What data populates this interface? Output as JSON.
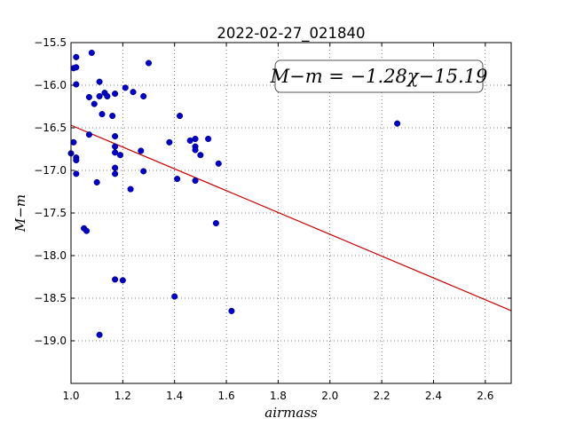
{
  "chart_data": {
    "type": "scatter",
    "title": "2022-02-27_021840",
    "xlabel": "airmass",
    "ylabel": "M−m",
    "xlim": [
      1.0,
      2.7
    ],
    "ylim": [
      -15.5,
      -19.5
    ],
    "y_inverted": true,
    "grid": true,
    "x_ticks": [
      1.0,
      1.2,
      1.4,
      1.6,
      1.8,
      2.0,
      2.2,
      2.4,
      2.6
    ],
    "x_tick_labels": [
      "1.0",
      "1.2",
      "1.4",
      "1.6",
      "1.8",
      "2.0",
      "2.2",
      "2.4",
      "2.6"
    ],
    "y_ticks": [
      -15.5,
      -16.0,
      -16.5,
      -17.0,
      -17.5,
      -18.0,
      -18.5,
      -19.0
    ],
    "y_tick_labels": [
      "−15.5",
      "−16.0",
      "−16.5",
      "−17.0",
      "−17.5",
      "−18.0",
      "−18.5",
      "−19.0"
    ],
    "annotation": "M−m = −1.28χ−15.19",
    "fit": {
      "slope": -1.28,
      "intercept": -15.19,
      "color": "#cc0000"
    },
    "marker_color": "#0000cc",
    "series": [
      {
        "x": [
          1.01,
          1.02,
          1.02,
          1.02,
          1.08,
          1.01,
          1.02,
          1.02,
          1.0,
          1.02,
          1.05,
          1.06,
          1.07,
          1.07,
          1.09,
          1.11,
          1.12,
          1.13,
          1.14,
          1.16,
          1.17,
          1.11,
          1.17,
          1.17,
          1.17,
          1.17,
          1.19,
          1.21,
          1.24,
          1.28,
          1.3,
          1.1,
          1.17,
          1.23,
          1.27,
          1.28,
          1.38,
          1.42,
          1.41,
          1.46,
          1.48,
          1.48,
          1.48,
          1.5,
          1.53,
          1.48,
          1.57,
          1.56,
          2.26,
          1.17,
          1.2,
          1.4,
          1.62,
          1.11
        ],
        "y": [
          -15.8,
          -15.79,
          -15.67,
          -15.99,
          -15.62,
          -16.67,
          -16.85,
          -17.04,
          -16.8,
          -16.88,
          -17.68,
          -17.71,
          -16.58,
          -16.14,
          -16.22,
          -16.13,
          -16.34,
          -16.09,
          -16.13,
          -16.36,
          -16.1,
          -15.96,
          -16.6,
          -16.72,
          -16.79,
          -17.04,
          -16.82,
          -16.03,
          -16.08,
          -16.13,
          -15.74,
          -17.14,
          -16.97,
          -17.22,
          -16.77,
          -17.01,
          -16.67,
          -16.36,
          -17.1,
          -16.65,
          -16.63,
          -16.72,
          -16.76,
          -16.82,
          -16.63,
          -17.12,
          -16.92,
          -17.62,
          -16.45,
          -18.28,
          -18.29,
          -18.48,
          -18.65,
          -18.93
        ]
      }
    ]
  }
}
